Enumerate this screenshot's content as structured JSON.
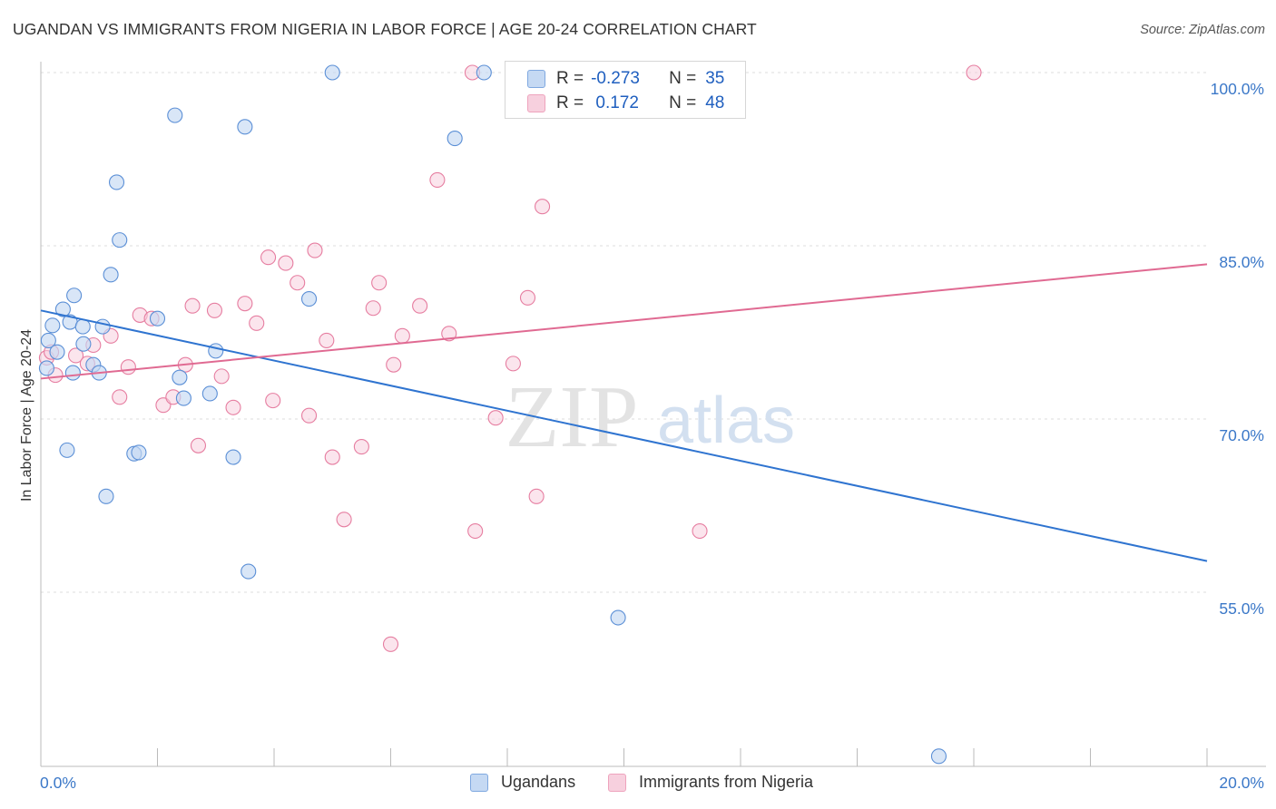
{
  "title": "UGANDAN VS IMMIGRANTS FROM NIGERIA IN LABOR FORCE | AGE 20-24 CORRELATION CHART",
  "source": "Source: ZipAtlas.com",
  "watermark": {
    "zip": "ZIP",
    "atlas": "atlas"
  },
  "legend": {
    "r_label": "R =",
    "n_label": "N =",
    "rows": [
      {
        "r": "-0.273",
        "n": "35"
      },
      {
        "r": " 0.172",
        "n": "48"
      }
    ]
  },
  "colors": {
    "ugandans": "#5b8fd6",
    "ugandans_fill": "#c5d9f3",
    "nigeria": "#e67da0",
    "nigeria_fill": "#f7d0de",
    "blue_line": "#2f74d0",
    "pink_line": "#e06a92",
    "tick_label": "#3b78c8"
  },
  "chart_data": {
    "type": "scatter",
    "title": "UGANDAN VS IMMIGRANTS FROM NIGERIA IN LABOR FORCE | AGE 20-24 CORRELATION CHART",
    "xlabel": "",
    "ylabel": "In Labor Force | Age 20-24",
    "xlim": [
      0,
      20
    ],
    "ylim": [
      40,
      102
    ],
    "x_tick_labels": [
      "0.0%",
      "20.0%"
    ],
    "y_ticks": [
      55,
      70,
      85,
      100
    ],
    "y_tick_labels": [
      "55.0%",
      "70.0%",
      "85.0%",
      "100.0%"
    ],
    "grid": true,
    "series": [
      {
        "name": "Ugandans",
        "points": [
          [
            0.1,
            74.4
          ],
          [
            0.13,
            76.8
          ],
          [
            0.2,
            78.1
          ],
          [
            0.28,
            75.8
          ],
          [
            0.38,
            79.5
          ],
          [
            0.45,
            67.3
          ],
          [
            0.5,
            78.4
          ],
          [
            0.55,
            74.0
          ],
          [
            0.57,
            80.7
          ],
          [
            0.72,
            78.0
          ],
          [
            0.73,
            76.5
          ],
          [
            0.9,
            74.7
          ],
          [
            1.0,
            74.0
          ],
          [
            1.06,
            78.0
          ],
          [
            1.12,
            63.3
          ],
          [
            1.2,
            82.5
          ],
          [
            1.3,
            90.5
          ],
          [
            1.35,
            85.5
          ],
          [
            1.6,
            67.0
          ],
          [
            1.68,
            67.1
          ],
          [
            2.0,
            78.7
          ],
          [
            2.3,
            96.3
          ],
          [
            2.38,
            73.6
          ],
          [
            2.45,
            71.8
          ],
          [
            2.9,
            72.2
          ],
          [
            3.0,
            75.9
          ],
          [
            3.3,
            66.7
          ],
          [
            3.5,
            95.3
          ],
          [
            3.56,
            56.8
          ],
          [
            4.6,
            80.4
          ],
          [
            5.0,
            100.0
          ],
          [
            7.1,
            94.3
          ],
          [
            7.6,
            100.0
          ],
          [
            9.9,
            52.8
          ],
          [
            15.4,
            40.8
          ]
        ]
      },
      {
        "name": "Immigrants from Nigeria",
        "points": [
          [
            0.1,
            75.3
          ],
          [
            0.18,
            75.8
          ],
          [
            0.25,
            73.8
          ],
          [
            0.6,
            75.5
          ],
          [
            0.8,
            74.8
          ],
          [
            0.9,
            76.4
          ],
          [
            1.2,
            77.2
          ],
          [
            1.35,
            71.9
          ],
          [
            1.5,
            74.5
          ],
          [
            1.7,
            79.0
          ],
          [
            1.9,
            78.7
          ],
          [
            2.1,
            71.2
          ],
          [
            2.27,
            71.9
          ],
          [
            2.48,
            74.7
          ],
          [
            2.6,
            79.8
          ],
          [
            2.7,
            67.7
          ],
          [
            2.98,
            79.4
          ],
          [
            3.1,
            73.7
          ],
          [
            3.3,
            71.0
          ],
          [
            3.5,
            80.0
          ],
          [
            3.7,
            78.3
          ],
          [
            3.9,
            84.0
          ],
          [
            3.98,
            71.6
          ],
          [
            4.2,
            83.5
          ],
          [
            4.4,
            81.8
          ],
          [
            4.6,
            70.3
          ],
          [
            4.7,
            84.6
          ],
          [
            4.9,
            76.8
          ],
          [
            5.0,
            66.7
          ],
          [
            5.2,
            61.3
          ],
          [
            5.5,
            67.6
          ],
          [
            5.7,
            79.6
          ],
          [
            5.8,
            81.8
          ],
          [
            6.0,
            50.5
          ],
          [
            6.05,
            74.7
          ],
          [
            6.2,
            77.2
          ],
          [
            6.5,
            79.8
          ],
          [
            6.8,
            90.7
          ],
          [
            7.0,
            77.4
          ],
          [
            7.4,
            100.0
          ],
          [
            7.45,
            60.3
          ],
          [
            7.8,
            70.1
          ],
          [
            8.1,
            74.8
          ],
          [
            8.35,
            80.5
          ],
          [
            8.5,
            63.3
          ],
          [
            8.6,
            88.4
          ],
          [
            11.3,
            60.3
          ],
          [
            16.0,
            100.0
          ]
        ]
      }
    ],
    "trend_lines": [
      {
        "series": "Ugandans",
        "x": [
          0,
          20
        ],
        "y": [
          79.4,
          57.7
        ]
      },
      {
        "series": "Immigrants from Nigeria",
        "x": [
          0,
          20
        ],
        "y": [
          73.5,
          83.4
        ]
      }
    ]
  },
  "bottom_legend": [
    "Ugandans",
    "Immigrants from Nigeria"
  ]
}
